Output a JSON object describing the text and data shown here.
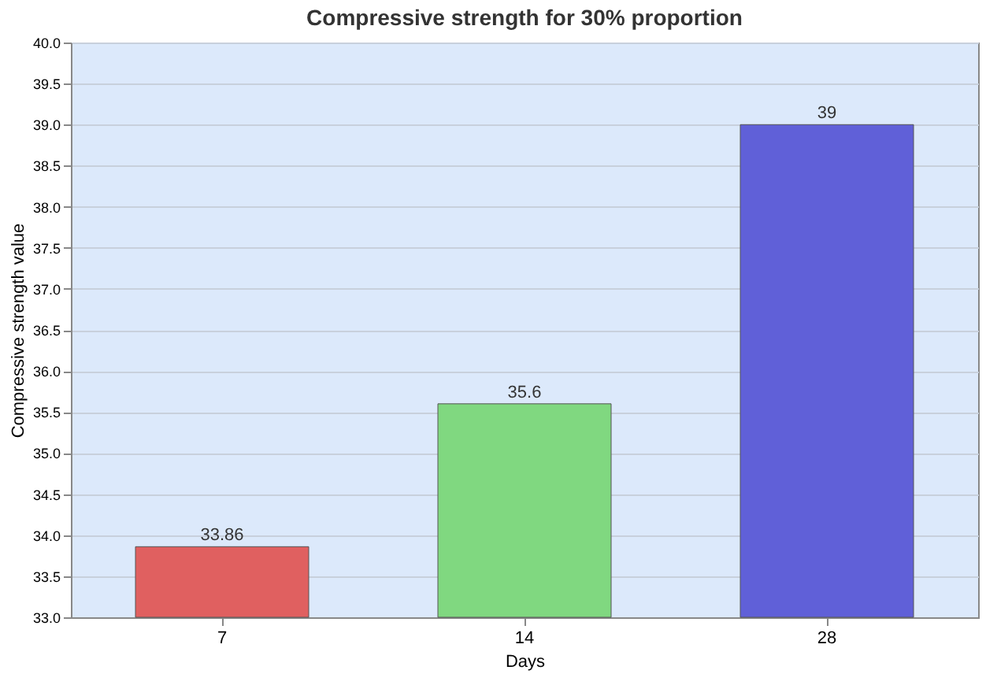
{
  "chart_data": {
    "type": "bar",
    "title": "Compressive strength for 30% proportion",
    "xlabel": "Days",
    "ylabel": "Compressive strength value",
    "categories": [
      "7",
      "14",
      "28"
    ],
    "values": [
      33.86,
      35.6,
      39
    ],
    "colors": [
      "#e06060",
      "#80d880",
      "#6060d8"
    ],
    "ylim": [
      33.0,
      40.0
    ],
    "yticks": [
      {
        "value": 33.0,
        "label": "33.0"
      },
      {
        "value": 33.5,
        "label": "33.5"
      },
      {
        "value": 34.0,
        "label": "34.0"
      },
      {
        "value": 34.5,
        "label": "34.5"
      },
      {
        "value": 35.0,
        "label": "35.0"
      },
      {
        "value": 35.5,
        "label": "35.5"
      },
      {
        "value": 36.0,
        "label": "36.0"
      },
      {
        "value": 36.5,
        "label": "36.5"
      },
      {
        "value": 37.0,
        "label": "37.0"
      },
      {
        "value": 37.5,
        "label": "37.5"
      },
      {
        "value": 38.0,
        "label": "38.0"
      },
      {
        "value": 38.5,
        "label": "38.5"
      },
      {
        "value": 39.0,
        "label": "39.0"
      },
      {
        "value": 39.5,
        "label": "39.5"
      },
      {
        "value": 40.0,
        "label": "40.0"
      }
    ],
    "grid": "y",
    "data_labels": true
  }
}
